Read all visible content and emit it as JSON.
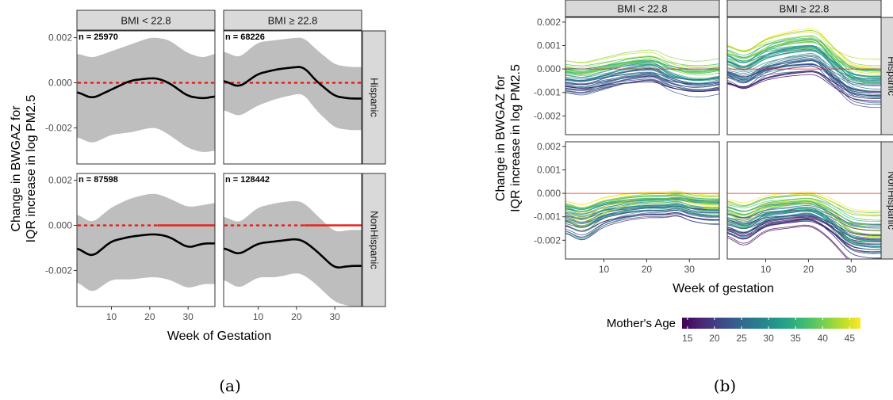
{
  "chart_data": [
    {
      "type": "line",
      "label": "(a)",
      "xlabel": "Week of Gestation",
      "ylabel_lines": [
        "Change in BWGAZ for",
        "IQR increase in log PM2.5"
      ],
      "xlim": [
        1,
        37
      ],
      "ylim": [
        -0.0036,
        0.0023
      ],
      "xticks": [
        10,
        20,
        30
      ],
      "yticks": [
        {
          "v": 0.002,
          "t": "0.002"
        },
        {
          "v": 0.0,
          "t": "0.000"
        },
        {
          "v": -0.002,
          "t": "-0.002"
        }
      ],
      "col_strips": [
        "BMI < 22.8",
        "BMI ≥ 22.8"
      ],
      "row_strips": [
        "Hispanic",
        "NonHispanic"
      ],
      "panels": [
        {
          "row": 0,
          "col": 0,
          "n": "n = 25970",
          "x": [
            1,
            5,
            10,
            15,
            20,
            22,
            25,
            30,
            34,
            37
          ],
          "y": [
            -0.0004,
            -0.0007,
            -0.0003,
            0.0001,
            0.0002,
            0.0002,
            0.0,
            -0.0006,
            -0.0007,
            -0.0006
          ],
          "lower": [
            -0.0024,
            -0.0027,
            -0.0023,
            -0.0022,
            -0.002,
            -0.002,
            -0.0023,
            -0.0029,
            -0.0031,
            -0.003
          ],
          "upper": [
            0.0013,
            0.0011,
            0.0014,
            0.0017,
            0.002,
            0.002,
            0.0019,
            0.0013,
            0.0011,
            0.0013
          ],
          "ref_style": "dotted"
        },
        {
          "row": 0,
          "col": 1,
          "n": "n = 68226",
          "x": [
            1,
            5,
            10,
            15,
            20,
            22,
            25,
            30,
            34,
            37
          ],
          "y": [
            0.0001,
            -0.0002,
            0.0004,
            0.0006,
            0.0007,
            0.0007,
            0.0001,
            -0.0006,
            -0.0007,
            -0.0007
          ],
          "lower": [
            -0.0012,
            -0.0015,
            -0.001,
            -0.0007,
            -0.0005,
            -0.0005,
            -0.0012,
            -0.002,
            -0.0021,
            -0.0021
          ],
          "upper": [
            0.0014,
            0.0011,
            0.0018,
            0.0019,
            0.002,
            0.002,
            0.0015,
            0.0008,
            0.0007,
            0.0007
          ],
          "ref_style": "dotted"
        },
        {
          "row": 1,
          "col": 0,
          "n": "n = 87598",
          "x": [
            1,
            5,
            10,
            15,
            20,
            22,
            25,
            30,
            34,
            37
          ],
          "y": [
            -0.001,
            -0.0014,
            -0.0007,
            -0.0005,
            -0.0004,
            -0.0004,
            -0.0005,
            -0.001,
            -0.0008,
            -0.0008
          ],
          "lower": [
            -0.0025,
            -0.003,
            -0.0024,
            -0.0024,
            -0.0023,
            -0.0023,
            -0.0024,
            -0.0028,
            -0.0026,
            -0.0026
          ],
          "upper": [
            0.0005,
            0.0001,
            0.0008,
            0.0012,
            0.0014,
            0.0014,
            0.0012,
            0.0008,
            0.0009,
            0.001
          ],
          "ref_style": "mixed",
          "solid_from": 22
        },
        {
          "row": 1,
          "col": 1,
          "n": "n = 128442",
          "x": [
            1,
            5,
            10,
            15,
            20,
            22,
            25,
            30,
            34,
            37
          ],
          "y": [
            -0.001,
            -0.0013,
            -0.0008,
            -0.0007,
            -0.0006,
            -0.0007,
            -0.0011,
            -0.0019,
            -0.0018,
            -0.0018
          ],
          "lower": [
            -0.0024,
            -0.0028,
            -0.0023,
            -0.0023,
            -0.0021,
            -0.0022,
            -0.0026,
            -0.0034,
            -0.0036,
            -0.0036
          ],
          "upper": [
            0.0004,
            0.0001,
            0.0008,
            0.001,
            0.0011,
            0.001,
            0.0005,
            -0.0003,
            -0.0002,
            -0.0002
          ],
          "ref_style": "mixed",
          "solid_from": 22
        }
      ]
    },
    {
      "type": "line",
      "label": "(b)",
      "xlabel": "Week of gestation",
      "ylabel_lines": [
        "Change in BWGAZ for",
        "IQR increase in log PM2.5"
      ],
      "xlim": [
        1,
        37
      ],
      "ylim": [
        -0.0028,
        0.0022
      ],
      "xticks": [
        10,
        20,
        30
      ],
      "yticks": [
        {
          "v": 0.002,
          "t": "0.002"
        },
        {
          "v": 0.001,
          "t": "0.001"
        },
        {
          "v": 0.0,
          "t": "0.000"
        },
        {
          "v": -0.001,
          "t": "-0.001"
        },
        {
          "v": -0.002,
          "t": "-0.002"
        }
      ],
      "col_strips": [
        "BMI < 22.8",
        "BMI ≥ 22.8"
      ],
      "row_strips": [
        "Hispanic",
        "NonHispanic"
      ],
      "legend": {
        "title": "Mother's Age",
        "ticks": [
          15,
          20,
          25,
          30,
          35,
          40,
          45
        ],
        "range": [
          14,
          47
        ]
      },
      "panels": [
        {
          "row": 0,
          "col": 0,
          "base": {
            "x": [
              1,
              5,
              10,
              15,
              20,
              22,
              25,
              30,
              34,
              37
            ],
            "y": [
              -0.0003,
              -0.0004,
              -0.0002,
              0.0,
              0.0001,
              0.0001,
              -0.0002,
              -0.0004,
              -0.0004,
              -0.0003
            ]
          },
          "spread": 0.00075,
          "curves": 44
        },
        {
          "row": 0,
          "col": 1,
          "base": {
            "x": [
              1,
              5,
              10,
              15,
              20,
              22,
              25,
              30,
              34,
              37
            ],
            "y": [
              0.0002,
              -0.0001,
              0.0004,
              0.0006,
              0.0007,
              0.0007,
              0.0002,
              -0.0005,
              -0.0006,
              -0.0006
            ]
          },
          "spread": 0.00085,
          "curves": 54
        },
        {
          "row": 1,
          "col": 0,
          "base": {
            "x": [
              1,
              5,
              10,
              15,
              20,
              22,
              25,
              27,
              30,
              34,
              37
            ],
            "y": [
              -0.001,
              -0.0013,
              -0.0008,
              -0.0006,
              -0.0005,
              -0.0005,
              -0.0005,
              -0.0004,
              -0.0006,
              -0.0007,
              -0.0007
            ]
          },
          "spread": 0.00045,
          "curves": 50
        },
        {
          "row": 1,
          "col": 1,
          "base": {
            "x": [
              1,
              5,
              10,
              15,
              20,
              22,
              25,
              30,
              34,
              37
            ],
            "y": [
              -0.001,
              -0.0013,
              -0.0008,
              -0.0007,
              -0.0006,
              -0.0007,
              -0.001,
              -0.0017,
              -0.0018,
              -0.0018
            ]
          },
          "spread": 0.00055,
          "curves": 54
        }
      ]
    }
  ]
}
